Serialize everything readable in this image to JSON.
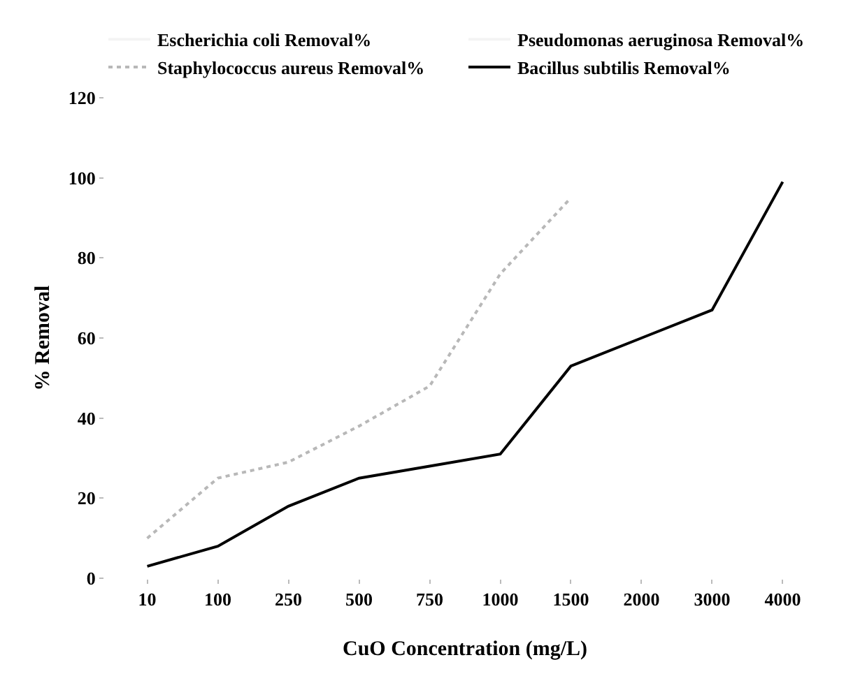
{
  "chart_data": {
    "type": "line",
    "xlabel": "CuO Concentration (mg/L)",
    "ylabel": "% Removal",
    "categories": [
      "10",
      "100",
      "250",
      "500",
      "750",
      "1000",
      "1500",
      "2000",
      "3000",
      "4000"
    ],
    "series": [
      {
        "name": "Escherichia coli Removal%",
        "color": "#f4f4f4",
        "values": [
          null,
          null,
          null,
          null,
          null,
          null,
          null,
          null,
          null,
          null
        ]
      },
      {
        "name": "Pseudomonas aeruginosa Removal%",
        "color": "#f4f4f4",
        "values": [
          null,
          null,
          null,
          null,
          null,
          null,
          null,
          null,
          null,
          null
        ]
      },
      {
        "name": "Staphylococcus aureus Removal%",
        "color": "#b8b8b8",
        "line_style": "dotted",
        "values": [
          10,
          25,
          29,
          38,
          48,
          76,
          95,
          null,
          null,
          null
        ]
      },
      {
        "name": "Bacillus subtilis Removal%",
        "color": "#000000",
        "values": [
          3,
          8,
          18,
          25,
          28,
          31,
          53,
          60,
          67,
          99
        ]
      }
    ],
    "ylim": [
      0,
      120
    ],
    "yticks": [
      0,
      20,
      40,
      60,
      80,
      100,
      120
    ],
    "grid": false,
    "legend": "top",
    "marker": "none"
  }
}
